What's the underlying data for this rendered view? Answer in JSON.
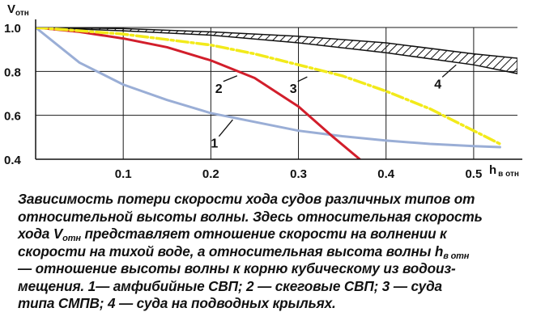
{
  "chart_data": {
    "type": "line",
    "title": "",
    "ylabel": {
      "main": "V",
      "sub": "отн"
    },
    "xlabel": {
      "main": "h",
      "sub": "в отн"
    },
    "xlim": [
      0,
      0.55
    ],
    "ylim": [
      0.4,
      1.0
    ],
    "x_ticks": [
      "0.1",
      "0.2",
      "0.3",
      "0.4",
      "0.5"
    ],
    "y_ticks": [
      "1.0",
      "0.8",
      "0.6",
      "0.4"
    ],
    "grid": true,
    "series": [
      {
        "name": "1",
        "color": "#9aaed6",
        "x": [
          0,
          0.05,
          0.1,
          0.15,
          0.2,
          0.25,
          0.3,
          0.35,
          0.4,
          0.45,
          0.5,
          0.53
        ],
        "y": [
          1.0,
          0.84,
          0.74,
          0.67,
          0.61,
          0.57,
          0.53,
          0.505,
          0.485,
          0.47,
          0.46,
          0.455
        ]
      },
      {
        "name": "2",
        "color": "#d21e2b",
        "x": [
          0,
          0.05,
          0.1,
          0.15,
          0.2,
          0.25,
          0.3,
          0.34,
          0.37
        ],
        "y": [
          1.0,
          0.98,
          0.95,
          0.91,
          0.85,
          0.77,
          0.64,
          0.5,
          0.4
        ]
      },
      {
        "name": "3",
        "color": "#f2ea1a",
        "x": [
          0,
          0.1,
          0.2,
          0.25,
          0.3,
          0.35,
          0.4,
          0.45,
          0.5,
          0.53
        ],
        "y": [
          1.0,
          0.97,
          0.92,
          0.88,
          0.83,
          0.78,
          0.71,
          0.63,
          0.53,
          0.47
        ]
      },
      {
        "name": "4",
        "style": "hatched band",
        "x": [
          0,
          0.1,
          0.2,
          0.3,
          0.4,
          0.5,
          0.55
        ],
        "upper": [
          1.0,
          0.995,
          0.98,
          0.96,
          0.93,
          0.88,
          0.86
        ],
        "lower": [
          1.0,
          0.985,
          0.965,
          0.93,
          0.885,
          0.83,
          0.79
        ]
      }
    ]
  },
  "caption": {
    "lines": [
      [
        {
          "t": "Зависимость потери скорости хода судов различных типов от"
        }
      ],
      [
        {
          "t": "относительной высоты волны. Здесь относительная скорость"
        }
      ],
      [
        {
          "t": "хода V"
        },
        {
          "t": "отн",
          "sub": true
        },
        {
          "t": " представляет отношение скорости на волнении к"
        }
      ],
      [
        {
          "t": "скорости на тихой воде, а относительная высота волны h"
        },
        {
          "t": "в отн",
          "sub": true
        }
      ],
      [
        {
          "t": "— отношение высоты волны к корню кубическому из водоиз-"
        }
      ],
      [
        {
          "t": "мещения. 1— амфибийные СВП; 2 — скеговые СВП; 3 — суда"
        }
      ],
      [
        {
          "t": "типа СМПВ; 4 — суда на подводных крыльях."
        }
      ]
    ]
  }
}
